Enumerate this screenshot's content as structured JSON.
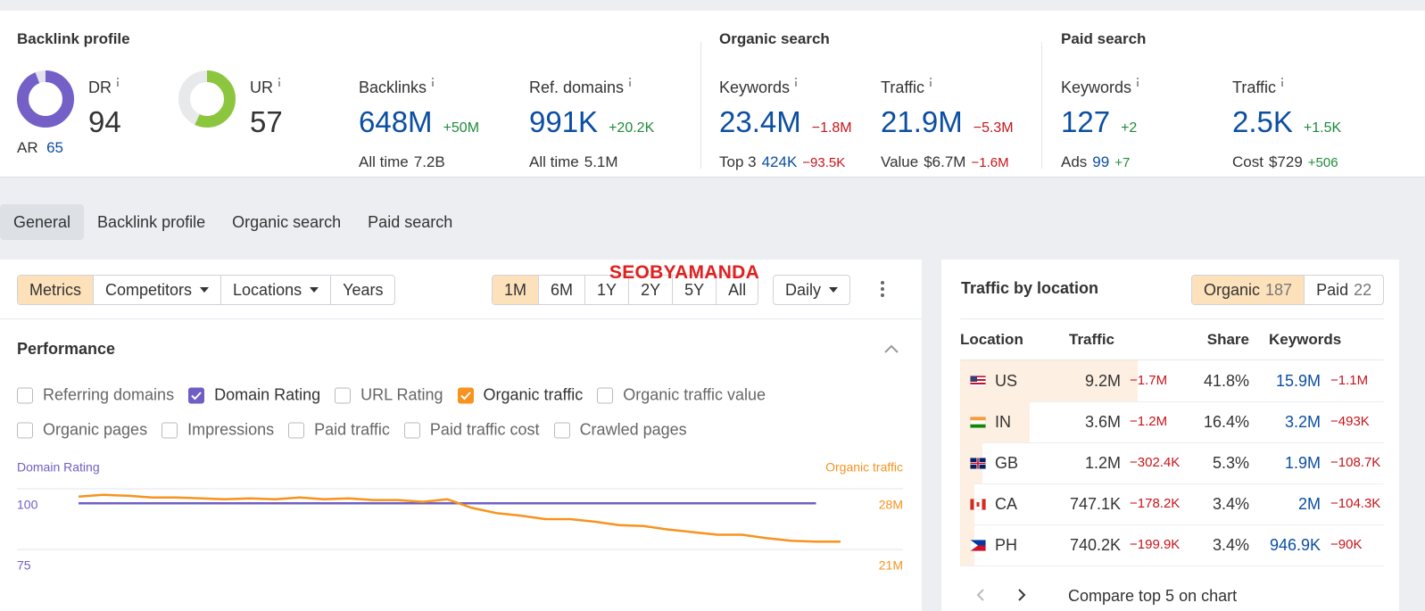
{
  "backlink_profile": {
    "title": "Backlink profile",
    "dr": {
      "label": "DR",
      "value": 94,
      "ar_label": "AR",
      "ar_value": 65
    },
    "ur": {
      "label": "UR",
      "value": 57
    },
    "backlinks": {
      "label": "Backlinks",
      "value": "648M",
      "change": "+50M",
      "sub_label": "All time",
      "sub_value": "7.2B"
    },
    "ref_domains": {
      "label": "Ref. domains",
      "value": "991K",
      "change": "+20.2K",
      "sub_label": "All time",
      "sub_value": "5.1M"
    }
  },
  "organic_search": {
    "title": "Organic search",
    "keywords": {
      "label": "Keywords",
      "value": "23.4M",
      "change": "−1.8M",
      "sub_label": "Top 3",
      "sub_value": "424K",
      "sub_change": "−93.5K"
    },
    "traffic": {
      "label": "Traffic",
      "value": "21.9M",
      "change": "−5.3M",
      "sub_label": "Value",
      "sub_value": "$6.7M",
      "sub_change": "−1.6M"
    }
  },
  "paid_search": {
    "title": "Paid search",
    "keywords": {
      "label": "Keywords",
      "value": "127",
      "change": "+2",
      "sub_label": "Ads",
      "sub_value": "99",
      "sub_change": "+7"
    },
    "traffic": {
      "label": "Traffic",
      "value": "2.5K",
      "change": "+1.5K",
      "sub_label": "Cost",
      "sub_value": "$729",
      "sub_change": "+506"
    }
  },
  "tabs": {
    "items": [
      "General",
      "Backlink profile",
      "Organic search",
      "Paid search"
    ],
    "active": 0
  },
  "toolbar": {
    "views": [
      {
        "label": "Metrics",
        "dropdown": false
      },
      {
        "label": "Competitors",
        "dropdown": true
      },
      {
        "label": "Locations",
        "dropdown": true
      },
      {
        "label": "Years",
        "dropdown": false
      }
    ],
    "active_view": 0,
    "ranges": [
      "1M",
      "6M",
      "1Y",
      "2Y",
      "5Y",
      "All"
    ],
    "active_range": 0,
    "interval": "Daily"
  },
  "watermark": "SEOBYAMANDA",
  "performance": {
    "title": "Performance",
    "checkbox_rows": [
      [
        {
          "label": "Referring domains",
          "checked": false
        },
        {
          "label": "Domain Rating",
          "checked": true,
          "color": "#6f5fc4"
        },
        {
          "label": "URL Rating",
          "checked": false
        },
        {
          "label": "Organic traffic",
          "checked": true,
          "color": "#f7931e"
        },
        {
          "label": "Organic traffic value",
          "checked": false
        }
      ],
      [
        {
          "label": "Organic pages",
          "checked": false
        },
        {
          "label": "Impressions",
          "checked": false
        },
        {
          "label": "Paid traffic",
          "checked": false
        },
        {
          "label": "Paid traffic cost",
          "checked": false
        },
        {
          "label": "Crawled pages",
          "checked": false
        }
      ]
    ]
  },
  "chart_data": {
    "type": "line",
    "categories": [
      null,
      null,
      null,
      null,
      null,
      null,
      null,
      null,
      null,
      null,
      null,
      null,
      null,
      null,
      null,
      null,
      null,
      null,
      null,
      null,
      null,
      null,
      null,
      null,
      null,
      null,
      null,
      null,
      null,
      null,
      null,
      null
    ],
    "series": [
      {
        "name": "Domain Rating",
        "color": "#6f5fc4",
        "values": [
          94,
          94,
          94,
          94,
          94,
          94,
          94,
          94,
          94,
          94,
          94,
          94,
          94,
          94,
          94,
          94,
          94,
          94,
          94,
          94,
          94,
          94,
          94,
          94,
          94,
          94,
          94,
          94,
          94,
          94,
          94,
          null
        ]
      },
      {
        "name": "Organic traffic",
        "color": "#f7931e",
        "axis": "y2",
        "values": [
          27.1,
          27.3,
          27.2,
          27.0,
          27.0,
          26.9,
          26.8,
          26.9,
          26.8,
          27.0,
          26.8,
          26.9,
          26.7,
          26.7,
          26.5,
          26.8,
          25.8,
          25.2,
          24.9,
          24.5,
          24.5,
          24.2,
          23.8,
          23.7,
          23.3,
          23.0,
          22.7,
          22.7,
          22.3,
          22.0,
          21.9,
          21.9
        ]
      }
    ],
    "ylim": [
      75,
      100
    ],
    "yticks": [
      75,
      100
    ],
    "y2lim": [
      21,
      28
    ],
    "y2ticks": [
      {
        "value": 21,
        "label": "21M"
      },
      {
        "value": 28,
        "label": "28M"
      }
    ],
    "grid": true
  },
  "traffic_by_location": {
    "title": "Traffic by location",
    "toggle": [
      {
        "label": "Organic",
        "count": 187
      },
      {
        "label": "Paid",
        "count": 22
      }
    ],
    "active_toggle": 0,
    "columns": [
      "Location",
      "Traffic",
      "Share",
      "Keywords"
    ],
    "rows": [
      {
        "country": "US",
        "traffic": "9.2M",
        "traffic_change": "−1.7M",
        "share": 41.8,
        "share_label": "41.8%",
        "keywords": "15.9M",
        "keywords_change": "−1.1M"
      },
      {
        "country": "IN",
        "traffic": "3.6M",
        "traffic_change": "−1.2M",
        "share": 16.4,
        "share_label": "16.4%",
        "keywords": "3.2M",
        "keywords_change": "−493K"
      },
      {
        "country": "GB",
        "traffic": "1.2M",
        "traffic_change": "−302.4K",
        "share": 5.3,
        "share_label": "5.3%",
        "keywords": "1.9M",
        "keywords_change": "−108.7K"
      },
      {
        "country": "CA",
        "traffic": "747.1K",
        "traffic_change": "−178.2K",
        "share": 3.4,
        "share_label": "3.4%",
        "keywords": "2M",
        "keywords_change": "−104.3K"
      },
      {
        "country": "PH",
        "traffic": "740.2K",
        "traffic_change": "−199.9K",
        "share": 3.4,
        "share_label": "3.4%",
        "keywords": "946.9K",
        "keywords_change": "−90K"
      }
    ],
    "footer": "Compare top 5 on chart"
  }
}
